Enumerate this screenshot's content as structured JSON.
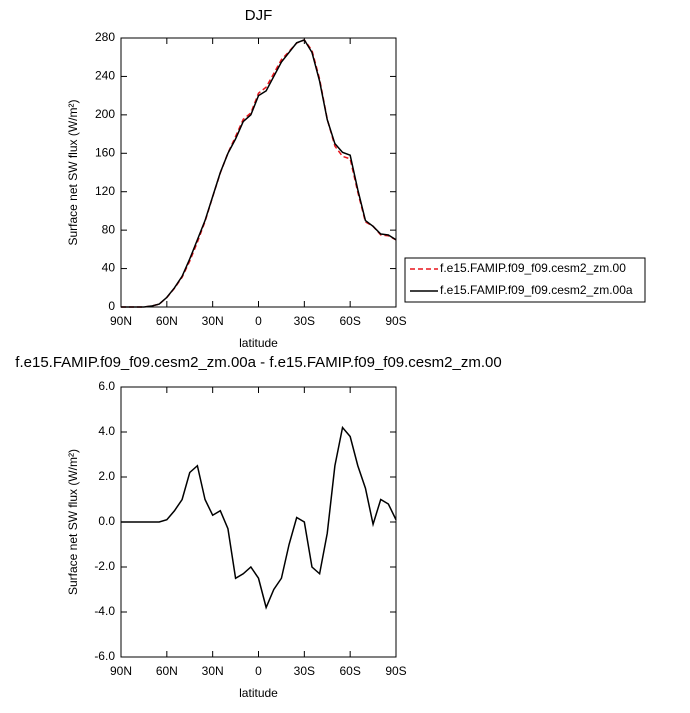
{
  "chart_data": [
    {
      "type": "line",
      "title": "DJF",
      "x_label": "latitude",
      "y_label": "Surface net SW flux (W/m²)",
      "x": [
        90,
        85,
        80,
        75,
        70,
        65,
        60,
        55,
        50,
        45,
        40,
        35,
        30,
        25,
        20,
        15,
        10,
        5,
        0,
        -5,
        -10,
        -15,
        -20,
        -25,
        -30,
        -35,
        -40,
        -45,
        -50,
        -55,
        -60,
        -65,
        -70,
        -75,
        -80,
        -85,
        -90
      ],
      "xlim": [
        90,
        -90
      ],
      "xticks": [
        {
          "value": 90,
          "label": "90N"
        },
        {
          "value": 60,
          "label": "60N"
        },
        {
          "value": 30,
          "label": "30N"
        },
        0,
        {
          "value": -30,
          "label": "30S"
        },
        {
          "value": -60,
          "label": "60S"
        },
        {
          "value": -90,
          "label": "90S"
        }
      ],
      "ylim": [
        0,
        280
      ],
      "yticks": [
        0,
        40,
        80,
        120,
        160,
        200,
        240,
        280
      ],
      "legend": "right",
      "series": [
        {
          "name": "f.e15.FAMIP.f09_f09.cesm2_zm.00",
          "color": "#e8141b",
          "line_style": "dashed",
          "values": [
            0,
            0,
            0,
            0,
            1,
            3,
            9.9,
            19.5,
            31,
            47.8,
            67.5,
            89,
            114.7,
            139.5,
            160.3,
            177.5,
            195.3,
            202,
            222.5,
            228.8,
            243,
            257.5,
            266,
            274.8,
            278,
            267,
            237.3,
            195.5,
            167.5,
            156.8,
            154.2,
            119.5,
            88.5,
            84.1,
            75,
            74.2,
            69.9
          ]
        },
        {
          "name": "f.e15.FAMIP.f09_f09.cesm2_zm.00a",
          "color": "#000000",
          "line_style": "solid",
          "values": [
            0,
            0,
            0,
            0,
            1,
            3,
            10,
            20,
            32,
            50,
            70,
            90,
            115,
            140,
            160,
            175,
            193,
            200,
            220,
            225,
            240,
            255,
            265,
            275,
            278,
            265,
            235,
            195,
            170,
            161,
            158,
            122,
            90,
            84,
            76,
            75,
            70
          ]
        }
      ]
    },
    {
      "type": "line",
      "title": "f.e15.FAMIP.f09_f09.cesm2_zm.00a - f.e15.FAMIP.f09_f09.cesm2_zm.00",
      "x_label": "latitude",
      "y_label": "Surface net SW flux (W/m²)",
      "x": [
        90,
        85,
        80,
        75,
        70,
        65,
        60,
        55,
        50,
        45,
        40,
        35,
        30,
        25,
        20,
        15,
        10,
        5,
        0,
        -5,
        -10,
        -15,
        -20,
        -25,
        -30,
        -35,
        -40,
        -45,
        -50,
        -55,
        -60,
        -65,
        -70,
        -75,
        -80,
        -85,
        -90
      ],
      "xlim": [
        90,
        -90
      ],
      "xticks": [
        {
          "value": 90,
          "label": "90N"
        },
        {
          "value": 60,
          "label": "60N"
        },
        {
          "value": 30,
          "label": "30N"
        },
        0,
        {
          "value": -30,
          "label": "30S"
        },
        {
          "value": -60,
          "label": "60S"
        },
        {
          "value": -90,
          "label": "90S"
        }
      ],
      "ylim": [
        -6,
        6
      ],
      "yticks": [
        {
          "value": -6,
          "label": "-6.0"
        },
        {
          "value": -4,
          "label": "-4.0"
        },
        {
          "value": -2,
          "label": "-2.0"
        },
        {
          "value": 0,
          "label": "0.0"
        },
        {
          "value": 2,
          "label": "2.0"
        },
        {
          "value": 4,
          "label": "4.0"
        },
        {
          "value": 6,
          "label": "6.0"
        }
      ],
      "series": [
        {
          "color": "#000000",
          "line_style": "solid",
          "values": [
            0,
            0,
            0,
            0,
            0,
            0,
            0.1,
            0.5,
            1.0,
            2.2,
            2.5,
            1.0,
            0.3,
            0.5,
            -0.3,
            -2.5,
            -2.3,
            -2.0,
            -2.5,
            -3.8,
            -3.0,
            -2.5,
            -1.0,
            0.2,
            0.0,
            -2.0,
            -2.3,
            -0.5,
            2.5,
            4.2,
            3.8,
            2.5,
            1.5,
            -0.1,
            1.0,
            0.8,
            0.1
          ]
        }
      ]
    }
  ]
}
